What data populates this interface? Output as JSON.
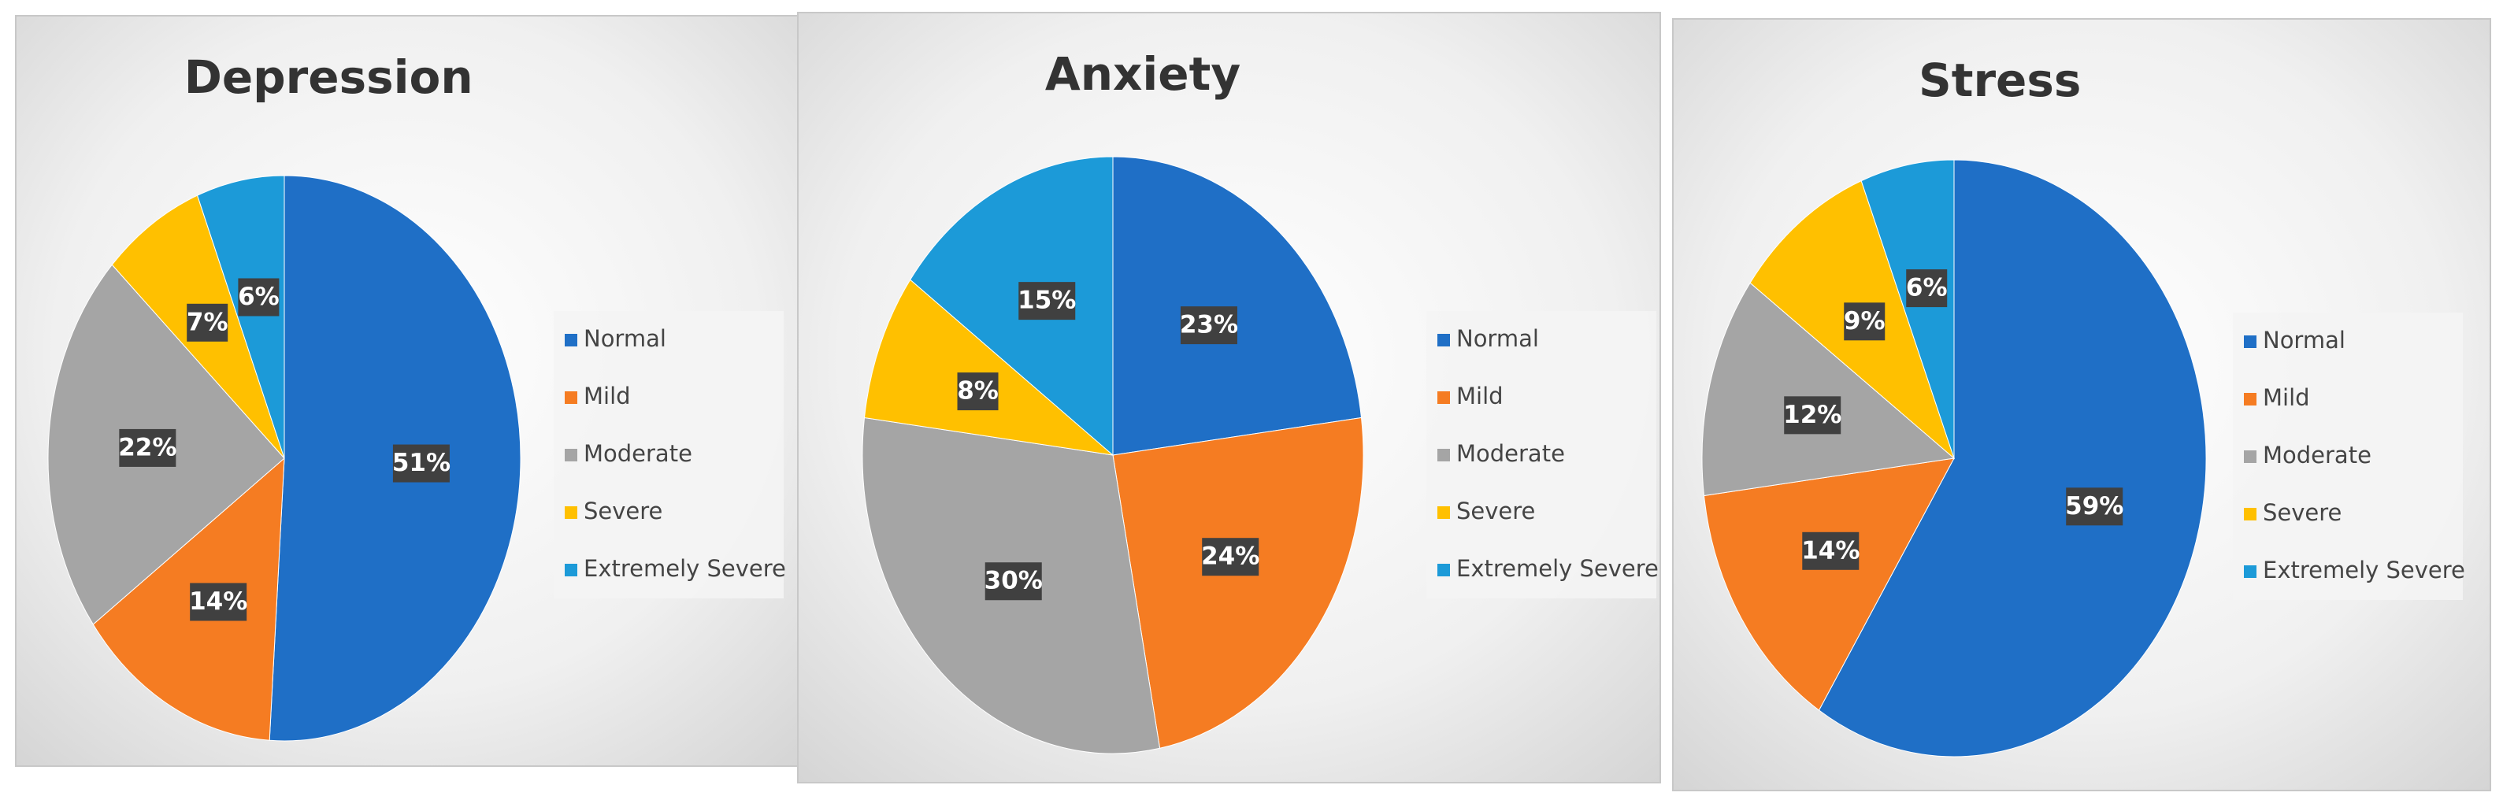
{
  "chart_data": [
    {
      "type": "pie",
      "title": "Depression",
      "categories": [
        "Normal",
        "Mild",
        "Moderate",
        "Severe",
        "Extremely Severe"
      ],
      "values": [
        51,
        14,
        22,
        7,
        6
      ],
      "value_labels": [
        "51%",
        "14%",
        "22%",
        "7%",
        "6%"
      ],
      "colors": [
        "#1f6fc6",
        "#f57c22",
        "#a5a5a5",
        "#ffc000",
        "#1c9ad8"
      ],
      "legend": "right"
    },
    {
      "type": "pie",
      "title": "Anxiety",
      "categories": [
        "Normal",
        "Mild",
        "Moderate",
        "Severe",
        "Extremely Severe"
      ],
      "values": [
        23,
        24,
        30,
        8,
        15
      ],
      "value_labels": [
        "23%",
        "24%",
        "30%",
        "8%",
        "15%"
      ],
      "colors": [
        "#1f6fc6",
        "#f57c22",
        "#a5a5a5",
        "#ffc000",
        "#1c9ad8"
      ],
      "legend": "right"
    },
    {
      "type": "pie",
      "title": "Stress",
      "categories": [
        "Normal",
        "Mild",
        "Moderate",
        "Severe",
        "Extremely Severe"
      ],
      "values": [
        59,
        14,
        12,
        9,
        6
      ],
      "value_labels": [
        "59%",
        "14%",
        "12%",
        "9%",
        "6%"
      ],
      "colors": [
        "#1f6fc6",
        "#f57c22",
        "#a5a5a5",
        "#ffc000",
        "#1c9ad8"
      ],
      "legend": "right"
    }
  ]
}
